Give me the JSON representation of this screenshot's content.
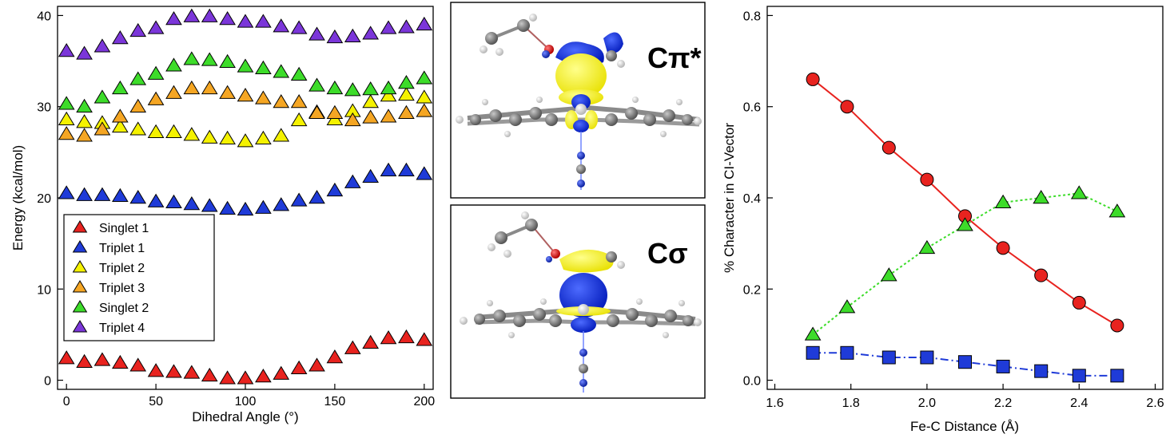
{
  "colors": {
    "red": "#e8231f",
    "blue": "#1f3bd8",
    "yellow": "#f5f200",
    "orange": "#f5a623",
    "green": "#3ddc2a",
    "purple": "#7b36d9",
    "mol_yellow": "#f7f400",
    "mol_blue": "#1231e0",
    "atom_gray": "#7d7d7d",
    "atom_white": "#e6e6e6"
  },
  "chart_data": [
    {
      "type": "scatter",
      "xlabel": "Dihedral Angle (°)",
      "ylabel": "Energy (kcal/mol)",
      "xlim": [
        -5,
        205
      ],
      "ylim": [
        -1,
        41
      ],
      "x_ticks": [
        0,
        50,
        100,
        150,
        200
      ],
      "y_ticks": [
        0,
        10,
        20,
        30,
        40
      ],
      "marker": "triangle",
      "legend_position": "bottom-left",
      "x": [
        0,
        10,
        20,
        30,
        40,
        50,
        60,
        70,
        80,
        90,
        100,
        110,
        120,
        130,
        140,
        150,
        160,
        170,
        180,
        190,
        200
      ],
      "series": [
        {
          "name": "Singlet 1",
          "color": "red",
          "values": [
            2.4,
            2.0,
            2.2,
            1.9,
            1.6,
            1.0,
            0.9,
            0.8,
            0.5,
            0.2,
            0.2,
            0.4,
            0.7,
            1.3,
            1.6,
            2.5,
            3.5,
            4.1,
            4.6,
            4.7,
            4.4
          ]
        },
        {
          "name": "Triplet 1",
          "color": "blue",
          "values": [
            20.5,
            20.3,
            20.3,
            20.2,
            20.0,
            19.6,
            19.5,
            19.3,
            19.1,
            18.8,
            18.7,
            18.9,
            19.2,
            19.7,
            20.0,
            20.8,
            21.7,
            22.3,
            23.0,
            23.0,
            22.6
          ]
        },
        {
          "name": "Triplet 2",
          "color": "yellow",
          "values": [
            28.6,
            28.3,
            28.2,
            27.8,
            27.5,
            27.2,
            27.2,
            26.9,
            26.6,
            26.5,
            26.2,
            26.5,
            26.8,
            28.5,
            29.4,
            28.6,
            29.5,
            30.5,
            31.2,
            31.3,
            31.0
          ]
        },
        {
          "name": "Triplet 3",
          "color": "orange",
          "values": [
            27.0,
            26.8,
            27.5,
            28.9,
            30.0,
            30.8,
            31.5,
            32.0,
            32.0,
            31.5,
            31.2,
            30.9,
            30.5,
            30.5,
            29.3,
            29.3,
            28.5,
            28.8,
            28.9,
            29.3,
            29.5
          ]
        },
        {
          "name": "Singlet 2",
          "color": "green",
          "values": [
            30.3,
            30.0,
            31.0,
            32.0,
            33.0,
            33.6,
            34.5,
            35.2,
            35.1,
            34.9,
            34.4,
            34.2,
            33.8,
            33.5,
            32.3,
            32.0,
            31.8,
            31.9,
            32.0,
            32.6,
            33.1
          ]
        },
        {
          "name": "Triplet 4",
          "color": "purple",
          "values": [
            36.1,
            35.8,
            36.6,
            37.5,
            38.3,
            38.6,
            39.6,
            39.9,
            39.9,
            39.6,
            39.3,
            39.3,
            38.8,
            38.6,
            37.9,
            37.6,
            37.7,
            38.0,
            38.6,
            38.7,
            39.0
          ]
        }
      ]
    },
    {
      "type": "line",
      "xlabel": "Fe-C Distance (Å)",
      "ylabel": "% Character in CI-Vector",
      "xlim": [
        1.58,
        2.62
      ],
      "ylim": [
        -0.02,
        0.82
      ],
      "x_tick_labels": [
        "1.6",
        "1.8",
        "2.0",
        "2.2",
        "2.4",
        "2.6"
      ],
      "y_tick_labels": [
        "0.0",
        "0.2",
        "0.4",
        "0.6",
        "0.8"
      ],
      "x": [
        1.7,
        1.79,
        1.9,
        2.0,
        2.1,
        2.2,
        2.3,
        2.4,
        2.5
      ],
      "series": [
        {
          "color": "red",
          "marker": "circle",
          "line": "solid",
          "values": [
            0.66,
            0.6,
            0.51,
            0.44,
            0.36,
            0.29,
            0.23,
            0.17,
            0.12
          ]
        },
        {
          "color": "green",
          "marker": "triangle",
          "line": "dotted",
          "values": [
            0.1,
            0.16,
            0.23,
            0.29,
            0.34,
            0.39,
            0.4,
            0.41,
            0.37
          ]
        },
        {
          "color": "blue",
          "marker": "square",
          "line": "dash-dot",
          "values": [
            0.06,
            0.06,
            0.05,
            0.05,
            0.04,
            0.03,
            0.02,
            0.01,
            0.01
          ]
        }
      ]
    }
  ],
  "middle": {
    "top_label": "Cπ*",
    "bottom_label": "Cσ"
  }
}
